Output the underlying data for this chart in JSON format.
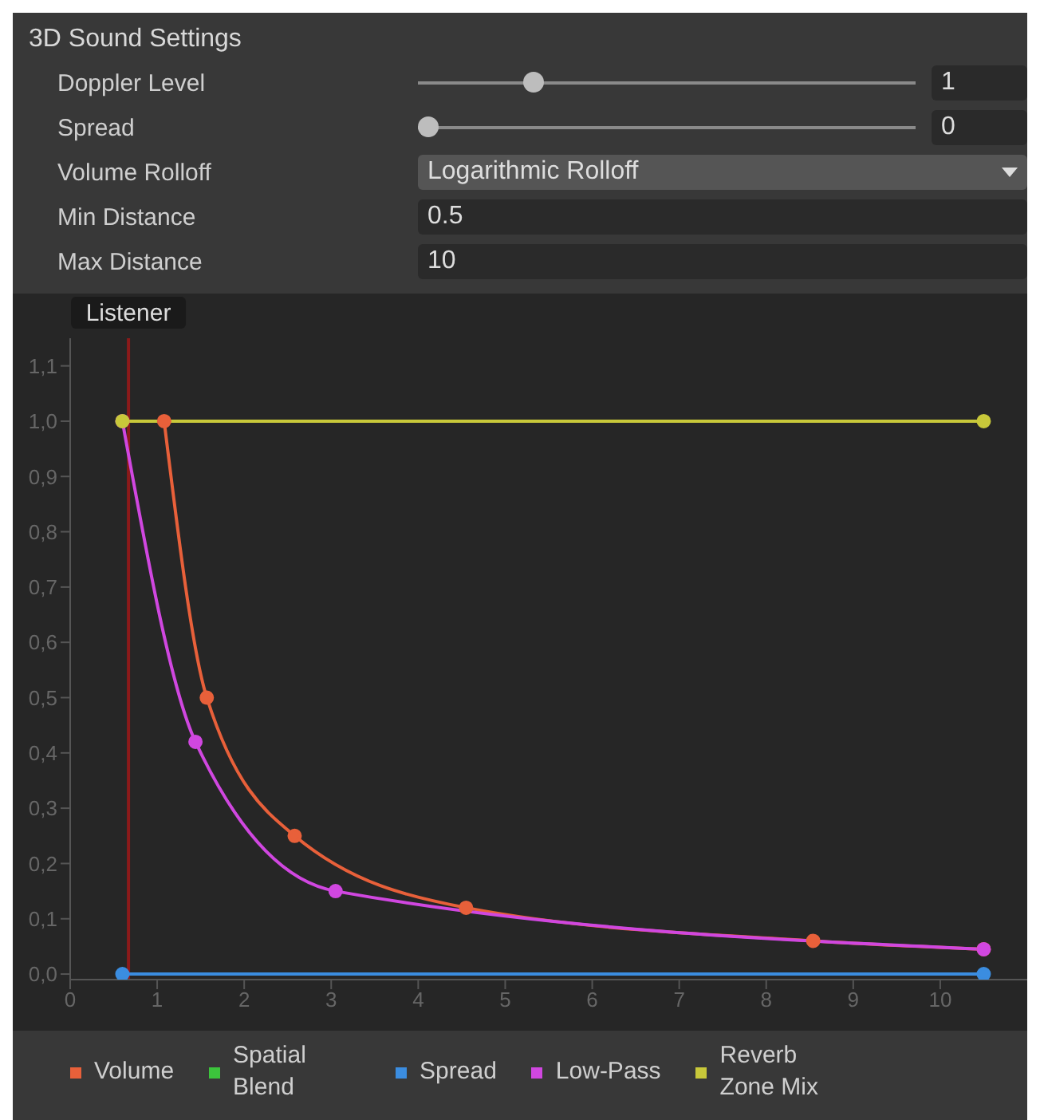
{
  "chart_data": {
    "type": "line",
    "title": "3D Sound Settings",
    "annotations": [
      "Doppler Level",
      "1",
      "Spread",
      "0",
      "Volume Rolloff",
      "Logarithmic Rolloff",
      "Min Distance",
      "0.5",
      "Max Distance",
      "10"
    ],
    "series": [
      {
        "name": "Volume",
        "color": "#e8603a",
        "x": [
          1.08,
          1.57,
          2.58,
          4.55,
          8.54,
          10.5
        ],
        "values": [
          1.0,
          0.5,
          0.25,
          0.12,
          0.06,
          0.045
        ]
      },
      {
        "name": "Spatial Blend",
        "color": "#3cc43c"
      },
      {
        "name": "Spread",
        "color": "#3b8de0",
        "x": [
          0.6,
          10.5
        ],
        "values": [
          0,
          0
        ]
      },
      {
        "name": "Low-Pass",
        "color": "#d047e0",
        "x": [
          0.6,
          1.44,
          3.05,
          10.5
        ],
        "values": [
          1.0,
          0.42,
          0.15,
          0.045
        ]
      },
      {
        "name": "Reverb Zone Mix",
        "color": "#c8c83a",
        "x": [
          0.6,
          10.5
        ],
        "values": [
          1.0,
          1.0
        ]
      }
    ],
    "ref_lines": [
      {
        "axis": "x",
        "value": 0.67,
        "label": "Listener",
        "color": "#8b1a1a"
      }
    ],
    "xlim": [
      0,
      11
    ],
    "xticks": [
      0,
      1,
      2,
      3,
      4,
      5,
      6,
      7,
      8,
      9,
      10
    ],
    "ylim": [
      -0.01,
      1.15
    ],
    "yticks": [
      {
        "value": 0,
        "label": "0,0"
      },
      {
        "value": 0.1,
        "label": "0,1"
      },
      {
        "value": 0.2,
        "label": "0,2"
      },
      {
        "value": 0.3,
        "label": "0,3"
      },
      {
        "value": 0.4,
        "label": "0,4"
      },
      {
        "value": 0.5,
        "label": "0,5"
      },
      {
        "value": 0.6,
        "label": "0,6"
      },
      {
        "value": 0.7,
        "label": "0,7"
      },
      {
        "value": 0.8,
        "label": "0,8"
      },
      {
        "value": 0.9,
        "label": "0,9"
      },
      {
        "value": 1.0,
        "label": "1,0"
      },
      {
        "value": 1.1,
        "label": "1,1"
      }
    ],
    "legend": "bottom",
    "marker": "circle",
    "line_style": "solid",
    "grid": false
  }
}
